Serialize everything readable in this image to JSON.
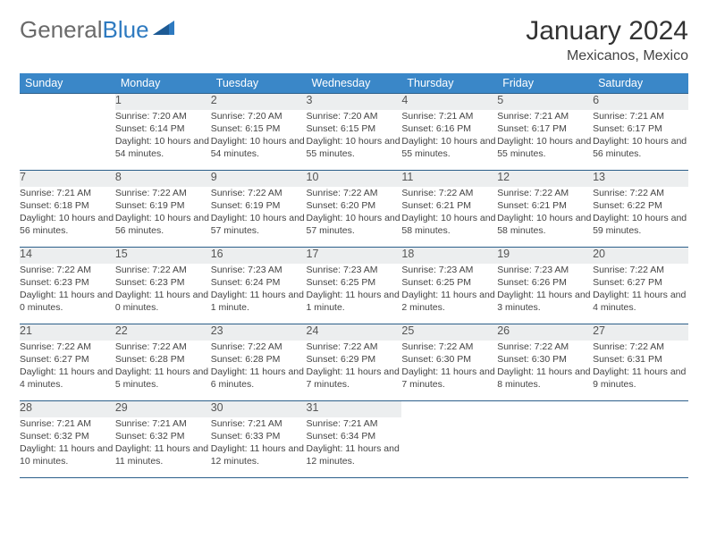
{
  "logo": {
    "text1": "General",
    "text2": "Blue"
  },
  "title": "January 2024",
  "location": "Mexicanos, Mexico",
  "colors": {
    "header_bg": "#3a87c8",
    "header_text": "#ffffff",
    "daynum_bg": "#eceeef",
    "border": "#2c5f8a",
    "body_text": "#444444",
    "title_text": "#333333",
    "logo_gray": "#6a6a6a",
    "logo_blue": "#2e7ac0"
  },
  "weekdays": [
    "Sunday",
    "Monday",
    "Tuesday",
    "Wednesday",
    "Thursday",
    "Friday",
    "Saturday"
  ],
  "weeks": [
    {
      "days": [
        {
          "num": "",
          "sunrise": "",
          "sunset": "",
          "daylight": ""
        },
        {
          "num": "1",
          "sunrise": "Sunrise: 7:20 AM",
          "sunset": "Sunset: 6:14 PM",
          "daylight": "Daylight: 10 hours and 54 minutes."
        },
        {
          "num": "2",
          "sunrise": "Sunrise: 7:20 AM",
          "sunset": "Sunset: 6:15 PM",
          "daylight": "Daylight: 10 hours and 54 minutes."
        },
        {
          "num": "3",
          "sunrise": "Sunrise: 7:20 AM",
          "sunset": "Sunset: 6:15 PM",
          "daylight": "Daylight: 10 hours and 55 minutes."
        },
        {
          "num": "4",
          "sunrise": "Sunrise: 7:21 AM",
          "sunset": "Sunset: 6:16 PM",
          "daylight": "Daylight: 10 hours and 55 minutes."
        },
        {
          "num": "5",
          "sunrise": "Sunrise: 7:21 AM",
          "sunset": "Sunset: 6:17 PM",
          "daylight": "Daylight: 10 hours and 55 minutes."
        },
        {
          "num": "6",
          "sunrise": "Sunrise: 7:21 AM",
          "sunset": "Sunset: 6:17 PM",
          "daylight": "Daylight: 10 hours and 56 minutes."
        }
      ]
    },
    {
      "days": [
        {
          "num": "7",
          "sunrise": "Sunrise: 7:21 AM",
          "sunset": "Sunset: 6:18 PM",
          "daylight": "Daylight: 10 hours and 56 minutes."
        },
        {
          "num": "8",
          "sunrise": "Sunrise: 7:22 AM",
          "sunset": "Sunset: 6:19 PM",
          "daylight": "Daylight: 10 hours and 56 minutes."
        },
        {
          "num": "9",
          "sunrise": "Sunrise: 7:22 AM",
          "sunset": "Sunset: 6:19 PM",
          "daylight": "Daylight: 10 hours and 57 minutes."
        },
        {
          "num": "10",
          "sunrise": "Sunrise: 7:22 AM",
          "sunset": "Sunset: 6:20 PM",
          "daylight": "Daylight: 10 hours and 57 minutes."
        },
        {
          "num": "11",
          "sunrise": "Sunrise: 7:22 AM",
          "sunset": "Sunset: 6:21 PM",
          "daylight": "Daylight: 10 hours and 58 minutes."
        },
        {
          "num": "12",
          "sunrise": "Sunrise: 7:22 AM",
          "sunset": "Sunset: 6:21 PM",
          "daylight": "Daylight: 10 hours and 58 minutes."
        },
        {
          "num": "13",
          "sunrise": "Sunrise: 7:22 AM",
          "sunset": "Sunset: 6:22 PM",
          "daylight": "Daylight: 10 hours and 59 minutes."
        }
      ]
    },
    {
      "days": [
        {
          "num": "14",
          "sunrise": "Sunrise: 7:22 AM",
          "sunset": "Sunset: 6:23 PM",
          "daylight": "Daylight: 11 hours and 0 minutes."
        },
        {
          "num": "15",
          "sunrise": "Sunrise: 7:22 AM",
          "sunset": "Sunset: 6:23 PM",
          "daylight": "Daylight: 11 hours and 0 minutes."
        },
        {
          "num": "16",
          "sunrise": "Sunrise: 7:23 AM",
          "sunset": "Sunset: 6:24 PM",
          "daylight": "Daylight: 11 hours and 1 minute."
        },
        {
          "num": "17",
          "sunrise": "Sunrise: 7:23 AM",
          "sunset": "Sunset: 6:25 PM",
          "daylight": "Daylight: 11 hours and 1 minute."
        },
        {
          "num": "18",
          "sunrise": "Sunrise: 7:23 AM",
          "sunset": "Sunset: 6:25 PM",
          "daylight": "Daylight: 11 hours and 2 minutes."
        },
        {
          "num": "19",
          "sunrise": "Sunrise: 7:23 AM",
          "sunset": "Sunset: 6:26 PM",
          "daylight": "Daylight: 11 hours and 3 minutes."
        },
        {
          "num": "20",
          "sunrise": "Sunrise: 7:22 AM",
          "sunset": "Sunset: 6:27 PM",
          "daylight": "Daylight: 11 hours and 4 minutes."
        }
      ]
    },
    {
      "days": [
        {
          "num": "21",
          "sunrise": "Sunrise: 7:22 AM",
          "sunset": "Sunset: 6:27 PM",
          "daylight": "Daylight: 11 hours and 4 minutes."
        },
        {
          "num": "22",
          "sunrise": "Sunrise: 7:22 AM",
          "sunset": "Sunset: 6:28 PM",
          "daylight": "Daylight: 11 hours and 5 minutes."
        },
        {
          "num": "23",
          "sunrise": "Sunrise: 7:22 AM",
          "sunset": "Sunset: 6:28 PM",
          "daylight": "Daylight: 11 hours and 6 minutes."
        },
        {
          "num": "24",
          "sunrise": "Sunrise: 7:22 AM",
          "sunset": "Sunset: 6:29 PM",
          "daylight": "Daylight: 11 hours and 7 minutes."
        },
        {
          "num": "25",
          "sunrise": "Sunrise: 7:22 AM",
          "sunset": "Sunset: 6:30 PM",
          "daylight": "Daylight: 11 hours and 7 minutes."
        },
        {
          "num": "26",
          "sunrise": "Sunrise: 7:22 AM",
          "sunset": "Sunset: 6:30 PM",
          "daylight": "Daylight: 11 hours and 8 minutes."
        },
        {
          "num": "27",
          "sunrise": "Sunrise: 7:22 AM",
          "sunset": "Sunset: 6:31 PM",
          "daylight": "Daylight: 11 hours and 9 minutes."
        }
      ]
    },
    {
      "days": [
        {
          "num": "28",
          "sunrise": "Sunrise: 7:21 AM",
          "sunset": "Sunset: 6:32 PM",
          "daylight": "Daylight: 11 hours and 10 minutes."
        },
        {
          "num": "29",
          "sunrise": "Sunrise: 7:21 AM",
          "sunset": "Sunset: 6:32 PM",
          "daylight": "Daylight: 11 hours and 11 minutes."
        },
        {
          "num": "30",
          "sunrise": "Sunrise: 7:21 AM",
          "sunset": "Sunset: 6:33 PM",
          "daylight": "Daylight: 11 hours and 12 minutes."
        },
        {
          "num": "31",
          "sunrise": "Sunrise: 7:21 AM",
          "sunset": "Sunset: 6:34 PM",
          "daylight": "Daylight: 11 hours and 12 minutes."
        },
        {
          "num": "",
          "sunrise": "",
          "sunset": "",
          "daylight": ""
        },
        {
          "num": "",
          "sunrise": "",
          "sunset": "",
          "daylight": ""
        },
        {
          "num": "",
          "sunrise": "",
          "sunset": "",
          "daylight": ""
        }
      ]
    }
  ]
}
